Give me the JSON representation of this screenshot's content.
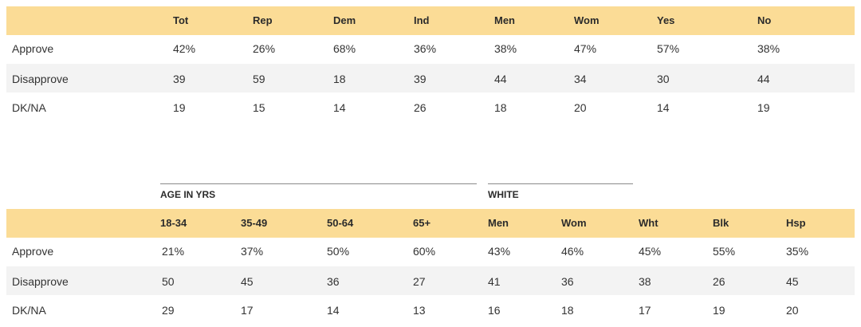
{
  "table1": {
    "headers": [
      "Tot",
      "Rep",
      "Dem",
      "Ind",
      "Men",
      "Wom",
      "Yes",
      "No"
    ],
    "rows": [
      {
        "label": "Approve",
        "values": [
          "42%",
          "26%",
          "68%",
          "36%",
          "38%",
          "47%",
          "57%",
          "38%"
        ]
      },
      {
        "label": "Disapprove",
        "values": [
          "39",
          "59",
          "18",
          "39",
          "44",
          "34",
          "30",
          "44"
        ]
      },
      {
        "label": "DK/NA",
        "values": [
          "19",
          "15",
          "14",
          "26",
          "18",
          "20",
          "14",
          "19"
        ]
      }
    ]
  },
  "table2": {
    "groups": [
      "AGE IN YRS",
      "WHITE"
    ],
    "headers": [
      "18-34",
      "35-49",
      "50-64",
      "65+",
      "Men",
      "Wom",
      "Wht",
      "Blk",
      "Hsp"
    ],
    "rows": [
      {
        "label": "Approve",
        "values": [
          "21%",
          "37%",
          "50%",
          "60%",
          "43%",
          "46%",
          "45%",
          "55%",
          "35%"
        ]
      },
      {
        "label": "Disapprove",
        "values": [
          "50",
          "45",
          "36",
          "27",
          "41",
          "36",
          "38",
          "26",
          "45"
        ]
      },
      {
        "label": "DK/NA",
        "values": [
          "29",
          "17",
          "14",
          "13",
          "16",
          "18",
          "17",
          "19",
          "20"
        ]
      }
    ]
  }
}
